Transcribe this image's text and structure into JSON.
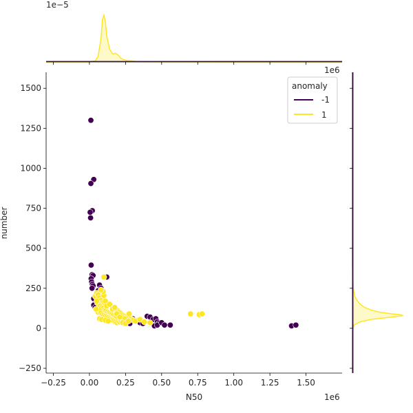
{
  "chart_data": {
    "type": "scatter",
    "xlabel": "N50",
    "ylabel": "number",
    "x_offset_label": "1e6",
    "top_marginal_offset_label": "1e−5",
    "right_marginal_offset_label": "1e6",
    "xlim": [
      -300000,
      1750000
    ],
    "ylim": [
      -280,
      1600
    ],
    "x_ticks": [
      -250000,
      0,
      250000,
      500000,
      750000,
      1000000,
      1250000,
      1500000
    ],
    "x_tick_labels": [
      "−0.25",
      "0.00",
      "0.25",
      "0.50",
      "0.75",
      "1.00",
      "1.25",
      "1.50"
    ],
    "y_ticks": [
      -250,
      0,
      250,
      500,
      750,
      1000,
      1250,
      1500
    ],
    "y_tick_labels": [
      "−250",
      "0",
      "250",
      "500",
      "750",
      "1000",
      "1250",
      "1500"
    ],
    "grid": false,
    "legend": {
      "title": "anomaly",
      "placement": "top-right",
      "entries": [
        {
          "label": "-1",
          "color": "#440154"
        },
        {
          "label": "1",
          "color": "#fde725"
        }
      ]
    },
    "series": [
      {
        "name": "-1",
        "color": "#440154",
        "points": [
          [
            10000,
            1300
          ],
          [
            30000,
            930
          ],
          [
            10000,
            905
          ],
          [
            20000,
            735
          ],
          [
            5000,
            725
          ],
          [
            8000,
            690
          ],
          [
            12000,
            395
          ],
          [
            18000,
            335
          ],
          [
            25000,
            330
          ],
          [
            12000,
            310
          ],
          [
            15000,
            290
          ],
          [
            20000,
            275
          ],
          [
            25000,
            265
          ],
          [
            18000,
            250
          ],
          [
            40000,
            200
          ],
          [
            30000,
            185
          ],
          [
            50000,
            195
          ],
          [
            60000,
            180
          ],
          [
            70000,
            270
          ],
          [
            80000,
            250
          ],
          [
            60000,
            235
          ],
          [
            30000,
            145
          ],
          [
            40000,
            130
          ],
          [
            120000,
            320
          ],
          [
            100000,
            120
          ],
          [
            150000,
            90
          ],
          [
            180000,
            80
          ],
          [
            250000,
            40
          ],
          [
            280000,
            30
          ],
          [
            300000,
            60
          ],
          [
            330000,
            45
          ],
          [
            350000,
            35
          ],
          [
            370000,
            30
          ],
          [
            400000,
            75
          ],
          [
            420000,
            70
          ],
          [
            440000,
            55
          ],
          [
            460000,
            60
          ],
          [
            470000,
            40
          ],
          [
            480000,
            30
          ],
          [
            450000,
            15
          ],
          [
            470000,
            20
          ],
          [
            500000,
            35
          ],
          [
            520000,
            20
          ],
          [
            560000,
            20
          ],
          [
            1400000,
            15
          ],
          [
            1430000,
            20
          ]
        ]
      },
      {
        "name": "1",
        "color": "#fde725",
        "points": [
          [
            40000,
            200
          ],
          [
            50000,
            220
          ],
          [
            60000,
            210
          ],
          [
            70000,
            190
          ],
          [
            80000,
            175
          ],
          [
            90000,
            160
          ],
          [
            100000,
            205
          ],
          [
            110000,
            170
          ],
          [
            55000,
            160
          ],
          [
            65000,
            150
          ],
          [
            75000,
            140
          ],
          [
            85000,
            130
          ],
          [
            95000,
            125
          ],
          [
            105000,
            115
          ],
          [
            115000,
            110
          ],
          [
            125000,
            100
          ],
          [
            135000,
            95
          ],
          [
            145000,
            90
          ],
          [
            155000,
            85
          ],
          [
            165000,
            80
          ],
          [
            175000,
            75
          ],
          [
            185000,
            70
          ],
          [
            195000,
            110
          ],
          [
            205000,
            100
          ],
          [
            215000,
            95
          ],
          [
            225000,
            85
          ],
          [
            235000,
            80
          ],
          [
            245000,
            75
          ],
          [
            255000,
            70
          ],
          [
            265000,
            65
          ],
          [
            275000,
            90
          ],
          [
            285000,
            60
          ],
          [
            295000,
            55
          ],
          [
            305000,
            50
          ],
          [
            320000,
            45
          ],
          [
            60000,
            100
          ],
          [
            70000,
            110
          ],
          [
            80000,
            95
          ],
          [
            90000,
            85
          ],
          [
            100000,
            80
          ],
          [
            110000,
            75
          ],
          [
            120000,
            70
          ],
          [
            130000,
            65
          ],
          [
            140000,
            60
          ],
          [
            150000,
            55
          ],
          [
            160000,
            50
          ],
          [
            170000,
            45
          ],
          [
            180000,
            40
          ],
          [
            190000,
            35
          ],
          [
            200000,
            45
          ],
          [
            210000,
            40
          ],
          [
            220000,
            50
          ],
          [
            230000,
            55
          ],
          [
            240000,
            60
          ],
          [
            100000,
            320
          ],
          [
            70000,
            60
          ],
          [
            85000,
            55
          ],
          [
            110000,
            50
          ],
          [
            130000,
            45
          ],
          [
            95000,
            230
          ],
          [
            80000,
            240
          ],
          [
            50000,
            170
          ],
          [
            45000,
            120
          ],
          [
            120000,
            140
          ],
          [
            140000,
            150
          ],
          [
            160000,
            120
          ],
          [
            175000,
            130
          ],
          [
            190000,
            90
          ],
          [
            210000,
            70
          ],
          [
            230000,
            35
          ],
          [
            250000,
            30
          ],
          [
            270000,
            45
          ],
          [
            350000,
            55
          ],
          [
            380000,
            40
          ],
          [
            420000,
            35
          ],
          [
            700000,
            90
          ],
          [
            760000,
            85
          ],
          [
            780000,
            90
          ]
        ]
      }
    ],
    "top_marginal": {
      "type": "area",
      "series_name": "1",
      "color": "#fde725",
      "x": [
        -300000,
        0,
        40000,
        60000,
        80000,
        90000,
        100000,
        110000,
        120000,
        140000,
        160000,
        180000,
        200000,
        220000,
        260000,
        320000,
        400000,
        600000,
        900000,
        1750000
      ],
      "density": [
        0,
        0,
        0.15,
        0.8,
        3.5,
        6.3,
        7.0,
        6.0,
        3.8,
        1.9,
        1.2,
        1.3,
        1.0,
        0.5,
        0.2,
        0.08,
        0.03,
        0.01,
        0,
        0
      ],
      "baseline_series": "-1",
      "baseline_color": "#440154",
      "ylim": [
        0,
        7.8
      ]
    },
    "right_marginal": {
      "type": "area",
      "series_name": "1",
      "color": "#fde725",
      "y": [
        -280,
        -20,
        20,
        40,
        55,
        65,
        75,
        80,
        85,
        90,
        100,
        115,
        130,
        150,
        175,
        200,
        250,
        400,
        1600
      ],
      "density": [
        0,
        0,
        0.1,
        0.5,
        1.2,
        2.1,
        3.0,
        3.3,
        3.1,
        2.6,
        1.8,
        1.2,
        0.8,
        0.5,
        0.3,
        0.15,
        0.05,
        0,
        0
      ],
      "baseline_series": "-1",
      "baseline_color": "#440154",
      "xlim": [
        0,
        3.5
      ]
    }
  }
}
